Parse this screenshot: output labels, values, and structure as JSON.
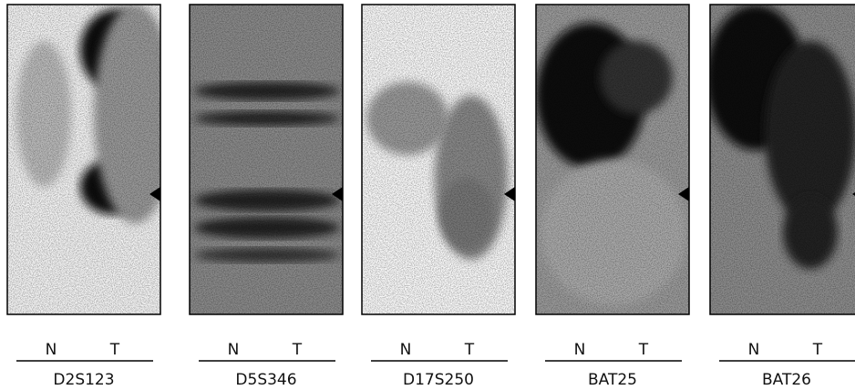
{
  "panels": [
    {
      "lane_labels": [
        "N",
        "T"
      ],
      "marker": "D2S123"
    },
    {
      "lane_labels": [
        "N",
        "T"
      ],
      "marker": "D5S346"
    },
    {
      "lane_labels": [
        "N",
        "T"
      ],
      "marker": "D17S250"
    },
    {
      "lane_labels": [
        "N",
        "T"
      ],
      "marker": "BAT25"
    },
    {
      "lane_labels": [
        "N",
        "T"
      ],
      "marker": "BAT26"
    }
  ]
}
